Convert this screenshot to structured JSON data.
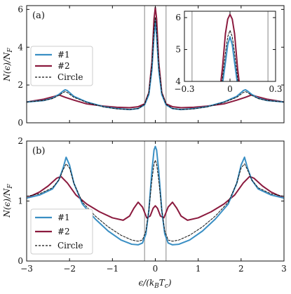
{
  "figure": {
    "panel_a_tag": "(a)",
    "panel_b_tag": "(b)",
    "y_label": "N(ϵ)/N",
    "y_label_sub": "F",
    "x_label_main": "ϵ/(k",
    "x_label_sub1": "B",
    "x_label_mid": "T",
    "x_label_sub2": "c",
    "x_label_end": ")"
  },
  "colors": {
    "series1": "#3a8fc4",
    "series2": "#8b1a3e",
    "circle": "#111111",
    "vline": "#9a9a9a"
  },
  "chart_data": [
    {
      "type": "line",
      "panel": "(a)",
      "xlim": [
        -3,
        3
      ],
      "ylim": [
        0,
        6.2
      ],
      "yticks": [
        0,
        2,
        4,
        6
      ],
      "xticks": [
        -3,
        -2,
        -1,
        0,
        1,
        2,
        3
      ],
      "vertical_lines": [
        -0.25,
        0.25
      ],
      "legend": [
        "#1",
        "#2",
        "Circle"
      ],
      "legend_position": "left",
      "series": [
        {
          "name": "#1",
          "x": [
            -3,
            -2.6,
            -2.4,
            -2.25,
            -2.15,
            -2.1,
            -2.05,
            -1.9,
            -1.6,
            -1.2,
            -0.9,
            -0.6,
            -0.4,
            -0.25,
            -0.15,
            -0.08,
            -0.03,
            0,
            0.03,
            0.08,
            0.15,
            0.25,
            0.4,
            0.6,
            0.9,
            1.2,
            1.6,
            1.9,
            2.05,
            2.1,
            2.15,
            2.25,
            2.4,
            2.6,
            3
          ],
          "y": [
            1.1,
            1.18,
            1.3,
            1.5,
            1.68,
            1.75,
            1.7,
            1.4,
            1.1,
            0.85,
            0.75,
            0.7,
            0.75,
            0.95,
            1.5,
            2.8,
            4.6,
            5.4,
            4.6,
            2.8,
            1.5,
            0.95,
            0.75,
            0.7,
            0.75,
            0.85,
            1.1,
            1.4,
            1.7,
            1.75,
            1.68,
            1.5,
            1.3,
            1.18,
            1.1
          ]
        },
        {
          "name": "#2",
          "x": [
            -3,
            -2.6,
            -2.35,
            -2.25,
            -2.1,
            -1.9,
            -1.6,
            -1.2,
            -0.9,
            -0.6,
            -0.4,
            -0.25,
            -0.15,
            -0.08,
            -0.03,
            0,
            0.03,
            0.08,
            0.15,
            0.25,
            0.4,
            0.6,
            0.9,
            1.2,
            1.6,
            1.9,
            2.1,
            2.25,
            2.35,
            2.6,
            3
          ],
          "y": [
            1.1,
            1.25,
            1.4,
            1.48,
            1.35,
            1.2,
            1.0,
            0.88,
            0.82,
            0.8,
            0.85,
            1.0,
            1.6,
            3.2,
            5.5,
            6.1,
            5.5,
            3.2,
            1.6,
            1.0,
            0.85,
            0.8,
            0.82,
            0.88,
            1.0,
            1.2,
            1.35,
            1.48,
            1.4,
            1.25,
            1.1
          ]
        },
        {
          "name": "Circle",
          "x": [
            -3,
            -2.6,
            -2.4,
            -2.25,
            -2.15,
            -2.1,
            -2.05,
            -1.9,
            -1.6,
            -1.2,
            -0.9,
            -0.6,
            -0.4,
            -0.25,
            -0.15,
            -0.08,
            -0.03,
            0,
            0.03,
            0.08,
            0.15,
            0.25,
            0.4,
            0.6,
            0.9,
            1.2,
            1.6,
            1.9,
            2.05,
            2.1,
            2.15,
            2.25,
            2.4,
            2.6,
            3
          ],
          "y": [
            1.1,
            1.18,
            1.28,
            1.45,
            1.6,
            1.65,
            1.6,
            1.35,
            1.08,
            0.84,
            0.74,
            0.7,
            0.76,
            0.98,
            1.6,
            3.0,
            4.9,
            5.6,
            4.9,
            3.0,
            1.6,
            0.98,
            0.76,
            0.7,
            0.74,
            0.84,
            1.08,
            1.35,
            1.6,
            1.65,
            1.6,
            1.45,
            1.28,
            1.18,
            1.1
          ]
        }
      ]
    },
    {
      "type": "line",
      "panel": "(a) inset",
      "xlim": [
        -0.3,
        0.3
      ],
      "ylim": [
        4,
        6.2
      ],
      "yticks": [
        4,
        5,
        6
      ],
      "xticks": [
        -0.3,
        0,
        0.3
      ],
      "xtick_labels": [
        "−0.3",
        "0",
        "0.3"
      ],
      "vertical_lines": [
        -0.25,
        0.25
      ],
      "series": [
        {
          "name": "#1",
          "x": [
            -0.08,
            -0.05,
            -0.03,
            -0.015,
            0,
            0.015,
            0.03,
            0.05,
            0.08
          ],
          "y": [
            2.8,
            3.9,
            4.6,
            5.15,
            5.4,
            5.15,
            4.6,
            3.9,
            2.8
          ]
        },
        {
          "name": "#2",
          "x": [
            -0.08,
            -0.05,
            -0.03,
            -0.015,
            0,
            0.015,
            0.03,
            0.05,
            0.08
          ],
          "y": [
            3.2,
            4.4,
            5.5,
            5.95,
            6.1,
            5.95,
            5.5,
            4.4,
            3.2
          ]
        },
        {
          "name": "Circle",
          "x": [
            -0.08,
            -0.05,
            -0.03,
            -0.015,
            0,
            0.015,
            0.03,
            0.05,
            0.08
          ],
          "y": [
            3.0,
            4.1,
            4.9,
            5.4,
            5.6,
            5.4,
            4.9,
            4.1,
            3.0
          ]
        }
      ]
    },
    {
      "type": "line",
      "panel": "(b)",
      "xlim": [
        -3,
        3
      ],
      "ylim": [
        0,
        2
      ],
      "yticks": [
        0,
        1,
        2
      ],
      "xticks": [
        -3,
        -2,
        -1,
        0,
        1,
        2,
        3
      ],
      "xtick_labels": [
        "−3",
        "−2",
        "−1",
        "0",
        "1",
        "2",
        "3"
      ],
      "vertical_lines": [
        -0.25,
        0.25
      ],
      "legend": [
        "#1",
        "#2",
        "Circle"
      ],
      "legend_position": "lower-left",
      "series": [
        {
          "name": "#1",
          "x": [
            -3,
            -2.7,
            -2.4,
            -2.25,
            -2.15,
            -2.08,
            -2.0,
            -1.9,
            -1.7,
            -1.4,
            -1.1,
            -0.8,
            -0.55,
            -0.4,
            -0.3,
            -0.22,
            -0.15,
            -0.08,
            -0.03,
            0,
            0.03,
            0.08,
            0.15,
            0.22,
            0.3,
            0.4,
            0.55,
            0.8,
            1.1,
            1.4,
            1.7,
            1.9,
            2.0,
            2.08,
            2.15,
            2.25,
            2.4,
            2.7,
            3
          ],
          "y": [
            1.05,
            1.1,
            1.2,
            1.35,
            1.55,
            1.73,
            1.6,
            1.3,
            0.95,
            0.7,
            0.5,
            0.35,
            0.28,
            0.27,
            0.3,
            0.45,
            0.85,
            1.5,
            1.85,
            1.91,
            1.85,
            1.5,
            0.85,
            0.45,
            0.3,
            0.27,
            0.28,
            0.35,
            0.5,
            0.7,
            0.95,
            1.3,
            1.6,
            1.73,
            1.55,
            1.35,
            1.2,
            1.1,
            1.05
          ]
        },
        {
          "name": "#2",
          "x": [
            -3,
            -2.7,
            -2.5,
            -2.3,
            -2.2,
            -2.05,
            -1.85,
            -1.6,
            -1.3,
            -1.0,
            -0.75,
            -0.6,
            -0.5,
            -0.4,
            -0.3,
            -0.2,
            -0.12,
            -0.05,
            0,
            0.05,
            0.12,
            0.2,
            0.3,
            0.4,
            0.5,
            0.6,
            0.75,
            1.0,
            1.3,
            1.6,
            1.85,
            2.05,
            2.2,
            2.3,
            2.5,
            2.7,
            3
          ],
          "y": [
            1.05,
            1.15,
            1.25,
            1.38,
            1.41,
            1.3,
            1.1,
            0.95,
            0.82,
            0.72,
            0.68,
            0.75,
            0.88,
            0.98,
            0.9,
            0.72,
            0.75,
            0.88,
            0.92,
            0.88,
            0.75,
            0.72,
            0.9,
            0.98,
            0.88,
            0.75,
            0.68,
            0.72,
            0.82,
            0.95,
            1.1,
            1.3,
            1.41,
            1.38,
            1.25,
            1.15,
            1.05
          ]
        },
        {
          "name": "Circle",
          "x": [
            -3,
            -2.7,
            -2.4,
            -2.25,
            -2.15,
            -2.08,
            -2.0,
            -1.9,
            -1.7,
            -1.4,
            -1.1,
            -0.8,
            -0.55,
            -0.4,
            -0.3,
            -0.22,
            -0.15,
            -0.08,
            -0.03,
            0,
            0.03,
            0.08,
            0.15,
            0.22,
            0.3,
            0.4,
            0.55,
            0.8,
            1.1,
            1.4,
            1.7,
            1.9,
            2.0,
            2.08,
            2.15,
            2.25,
            2.4,
            2.7,
            3
          ],
          "y": [
            1.08,
            1.12,
            1.22,
            1.35,
            1.52,
            1.62,
            1.55,
            1.3,
            0.98,
            0.75,
            0.57,
            0.43,
            0.35,
            0.33,
            0.35,
            0.5,
            0.85,
            1.35,
            1.62,
            1.68,
            1.62,
            1.35,
            0.85,
            0.5,
            0.35,
            0.33,
            0.35,
            0.43,
            0.57,
            0.75,
            0.98,
            1.3,
            1.55,
            1.62,
            1.52,
            1.35,
            1.22,
            1.12,
            1.08
          ]
        }
      ]
    }
  ]
}
